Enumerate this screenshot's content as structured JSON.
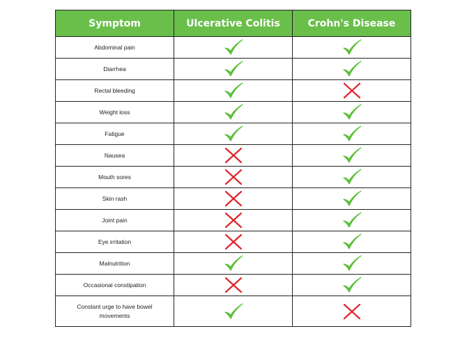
{
  "table": {
    "headers": [
      "Symptom",
      "Ulcerative Colitis",
      "Crohn's Disease"
    ],
    "rows": [
      {
        "symptom": "Abdominal pain",
        "uc": "check",
        "cd": "check"
      },
      {
        "symptom": "Diarrhea",
        "uc": "check",
        "cd": "check"
      },
      {
        "symptom": "Rectal bleeding",
        "uc": "check",
        "cd": "cross"
      },
      {
        "symptom": "Weight loss",
        "uc": "check",
        "cd": "check"
      },
      {
        "symptom": "Fatigue",
        "uc": "check",
        "cd": "check"
      },
      {
        "symptom": "Nausea",
        "uc": "cross",
        "cd": "check"
      },
      {
        "symptom": "Mouth sores",
        "uc": "cross",
        "cd": "check"
      },
      {
        "symptom": "Skin rash",
        "uc": "cross",
        "cd": "check"
      },
      {
        "symptom": "Joint pain",
        "uc": "cross",
        "cd": "check"
      },
      {
        "symptom": "Eye irritation",
        "uc": "cross",
        "cd": "check"
      },
      {
        "symptom": "Malnutrition",
        "uc": "check",
        "cd": "check"
      },
      {
        "symptom": "Occasional constipation",
        "uc": "cross",
        "cd": "check"
      },
      {
        "symptom": "Constant urge to have bowel movements",
        "uc": "check",
        "cd": "cross"
      }
    ]
  },
  "icons": {
    "check": "check-mark-icon",
    "cross": "cross-mark-icon"
  },
  "colors": {
    "header_bg": "#6abf4b",
    "header_text": "#ffffff",
    "check": "#5cbf3a",
    "cross": "#e0242b",
    "border": "#222222"
  }
}
